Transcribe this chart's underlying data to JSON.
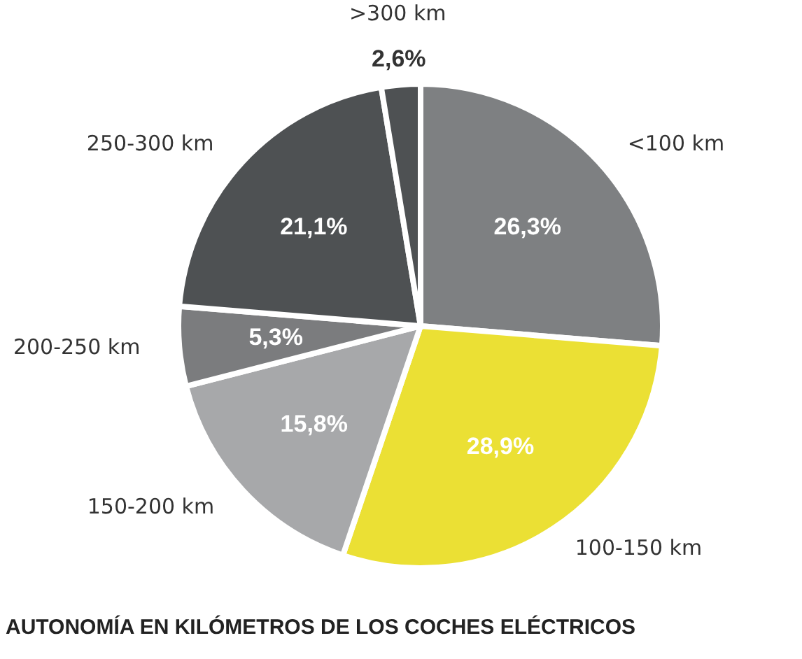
{
  "chart_data": {
    "type": "pie",
    "title": "AUTONOMÍA EN KILÓMETROS DE LOS COCHES ELÉCTRICOS",
    "categories": [
      "<100 km",
      "100-150 km",
      "150-200 km",
      "200-250 km",
      "250-300 km",
      ">300 km"
    ],
    "values": [
      26.3,
      28.9,
      15.8,
      5.3,
      21.1,
      2.6
    ],
    "colors": [
      "#7e8082",
      "#ebe034",
      "#a7a8aa",
      "#7b7c7e",
      "#4e5153",
      "#4e5153"
    ],
    "value_labels": [
      "26,3%",
      "28,9%",
      "15,8%",
      "5,3%",
      "21,1%",
      "2,6%"
    ],
    "legend": false
  }
}
